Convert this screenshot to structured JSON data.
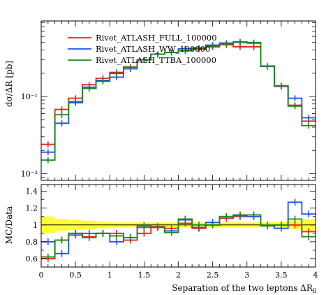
{
  "chart_data": [
    {
      "type": "line",
      "panel": "main",
      "ylabel": "dσ/ΔR [pb]",
      "yscale": "log",
      "ylim": [
        0.0082,
        0.95
      ],
      "xlim": [
        0,
        4
      ],
      "y_ticks": [
        {
          "value": 0.01,
          "label": "10⁻²"
        },
        {
          "value": 0.1,
          "label": "10⁻¹"
        }
      ],
      "x_edges": [
        0,
        0.2,
        0.4,
        0.6,
        0.8,
        1.0,
        1.2,
        1.4,
        1.6,
        1.8,
        2.0,
        2.2,
        2.4,
        2.6,
        2.8,
        3.0,
        3.2,
        3.4,
        3.6,
        3.8,
        4.0
      ],
      "legend_position": "top-left",
      "series": [
        {
          "name": "Rivet_ATLASH_FULL_100000",
          "color": "#e8211d",
          "values": [
            0.024,
            0.068,
            0.095,
            0.142,
            0.172,
            0.205,
            0.242,
            0.298,
            0.352,
            0.372,
            0.392,
            0.41,
            0.448,
            0.468,
            0.44,
            0.44,
            0.245,
            0.135,
            0.077,
            0.048
          ]
        },
        {
          "name": "Rivet_ATLASH_WW_100000",
          "color": "#1f4ff5",
          "values": [
            0.019,
            0.045,
            0.083,
            0.132,
            0.162,
            0.178,
            0.228,
            0.298,
            0.352,
            0.372,
            0.415,
            0.425,
            0.462,
            0.492,
            0.502,
            0.49,
            0.245,
            0.137,
            0.095,
            0.053
          ]
        },
        {
          "name": "Rivet_ATLASH_TTBA_100000",
          "color": "#198a19",
          "values": [
            0.015,
            0.058,
            0.086,
            0.127,
            0.157,
            0.198,
            0.238,
            0.298,
            0.352,
            0.372,
            0.392,
            0.425,
            0.438,
            0.482,
            0.51,
            0.5,
            0.248,
            0.138,
            0.075,
            0.042
          ]
        }
      ]
    },
    {
      "type": "line",
      "panel": "ratio",
      "xlabel": "Separation of the two leptons ΔR",
      "xlabel_subscript": "ll",
      "ylabel": "MC/Data",
      "ylim": [
        0.5,
        1.48
      ],
      "xlim": [
        0,
        4
      ],
      "x_ticks": [
        0,
        0.5,
        1,
        1.5,
        2,
        2.5,
        3,
        3.5,
        4
      ],
      "x_tick_labels": [
        "0",
        "0.5",
        "1",
        "1.5",
        "2",
        "2.5",
        "3",
        "3.5",
        "4"
      ],
      "y_ticks": [
        0.6,
        0.8,
        1,
        1.2,
        1.4
      ],
      "y_tick_labels": [
        "0.6",
        "0.8",
        "1",
        "1.2",
        "1.4"
      ],
      "reference_line": 1,
      "uncertainty_band_color": "#ffff33",
      "uncertainty_band_halfwidth": [
        0.1,
        0.07,
        0.06,
        0.05,
        0.04,
        0.03,
        0.03,
        0.03,
        0.03,
        0.03,
        0.03,
        0.03,
        0.03,
        0.03,
        0.03,
        0.03,
        0.03,
        0.04,
        0.05,
        0.07
      ],
      "series": [
        {
          "name": "Rivet_ATLASH_FULL_100000",
          "values": [
            0.6,
            0.82,
            0.9,
            0.86,
            0.9,
            0.9,
            0.82,
            0.9,
            0.98,
            0.96,
            1.02,
            0.96,
            1.0,
            1.08,
            1.1,
            1.1,
            0.99,
            1.0,
            1.0,
            0.92
          ]
        },
        {
          "name": "Rivet_ATLASH_WW_100000",
          "values": [
            0.8,
            0.66,
            0.88,
            0.9,
            0.9,
            0.8,
            0.85,
            0.99,
            0.97,
            0.93,
            1.06,
            0.97,
            1.03,
            1.1,
            1.11,
            1.1,
            0.99,
            0.96,
            1.27,
            1.13
          ]
        },
        {
          "name": "Rivet_ATLASH_TTBA_100000",
          "values": [
            0.62,
            0.82,
            0.9,
            0.85,
            0.9,
            0.87,
            0.85,
            0.97,
            0.97,
            0.91,
            1.07,
            1.0,
            1.0,
            1.1,
            1.12,
            1.12,
            1.0,
            1.0,
            1.07,
            0.86
          ]
        }
      ]
    }
  ]
}
